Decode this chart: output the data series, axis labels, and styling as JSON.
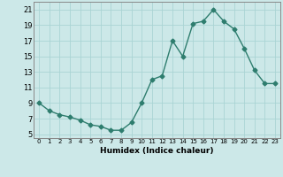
{
  "x": [
    0,
    1,
    2,
    3,
    4,
    5,
    6,
    7,
    8,
    9,
    10,
    11,
    12,
    13,
    14,
    15,
    16,
    17,
    18,
    19,
    20,
    21,
    22,
    23
  ],
  "y": [
    9,
    8,
    7.5,
    7.2,
    6.8,
    6.2,
    6.0,
    5.5,
    5.5,
    6.5,
    9.0,
    12.0,
    12.5,
    17.0,
    15.0,
    19.2,
    19.5,
    21.0,
    19.5,
    18.5,
    16.0,
    13.2,
    11.5,
    11.5
  ],
  "xlabel": "Humidex (Indice chaleur)",
  "ylabel": "",
  "ylim": [
    4.5,
    22
  ],
  "xlim": [
    -0.5,
    23.5
  ],
  "yticks": [
    5,
    7,
    9,
    11,
    13,
    15,
    17,
    19,
    21
  ],
  "xticks": [
    0,
    1,
    2,
    3,
    4,
    5,
    6,
    7,
    8,
    9,
    10,
    11,
    12,
    13,
    14,
    15,
    16,
    17,
    18,
    19,
    20,
    21,
    22,
    23
  ],
  "line_color": "#2e7d6e",
  "marker": "D",
  "marker_size": 2.5,
  "bg_color": "#cce8e8",
  "grid_color": "#aad4d4",
  "title": ""
}
